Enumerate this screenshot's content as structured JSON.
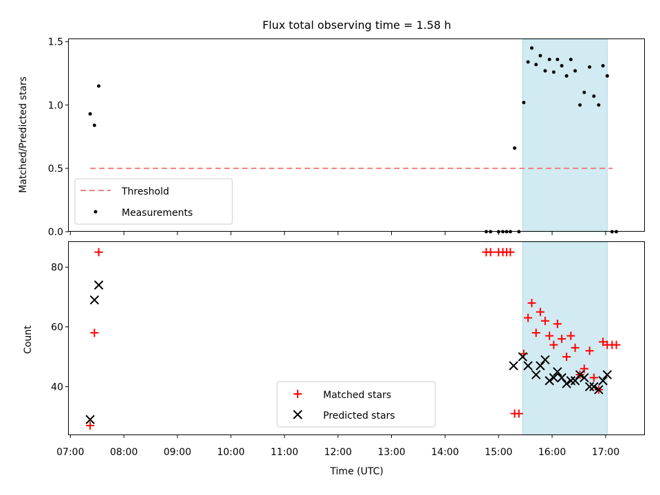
{
  "title": "Flux total observing time = 1.58 h",
  "colors": {
    "threshold": "#f08080",
    "measurement": "#000000",
    "matched": "#ff0000",
    "predicted": "#000000",
    "shade": "#add8e6"
  },
  "chart_data": [
    {
      "type": "scatter",
      "name": "ratio",
      "ylabel": "Matched/Predicted stars",
      "ylim": [
        0,
        1.52
      ],
      "yticks": [
        0.0,
        0.5,
        1.0,
        1.5
      ],
      "ytick_labels": [
        "0.0",
        "0.5",
        "1.0",
        "1.5"
      ],
      "xlim": [
        6.97,
        17.72
      ],
      "shaded_span": [
        15.45,
        17.03
      ],
      "threshold": {
        "label": "Threshold",
        "value": 0.5,
        "x_range": [
          7.37,
          17.13
        ]
      },
      "legend": {
        "position": "lower-left",
        "entries": [
          "Threshold",
          "Measurements"
        ]
      },
      "series": [
        {
          "name": "Measurements",
          "marker": "dot",
          "x": [
            7.37,
            7.45,
            7.53,
            14.77,
            14.85,
            15.0,
            15.08,
            15.15,
            15.22,
            15.3,
            15.38,
            15.47,
            15.55,
            15.62,
            15.7,
            15.78,
            15.87,
            15.95,
            16.03,
            16.1,
            16.18,
            16.27,
            16.35,
            16.43,
            16.52,
            16.6,
            16.7,
            16.78,
            16.87,
            16.95,
            17.03,
            17.12,
            17.2
          ],
          "y": [
            0.93,
            0.84,
            1.15,
            0.0,
            0.0,
            0.0,
            0.0,
            0.0,
            0.0,
            0.66,
            0.0,
            1.02,
            1.34,
            1.45,
            1.32,
            1.39,
            1.27,
            1.36,
            1.26,
            1.36,
            1.31,
            1.23,
            1.36,
            1.27,
            1.0,
            1.1,
            1.3,
            1.07,
            1.0,
            1.31,
            1.23,
            0.0,
            0.0
          ]
        }
      ]
    },
    {
      "type": "scatter",
      "name": "counts",
      "ylabel": "Count",
      "xlabel": "Time (UTC)",
      "ylim": [
        24,
        88.4
      ],
      "yticks": [
        40,
        60,
        80
      ],
      "ytick_labels": [
        "40",
        "60",
        "80"
      ],
      "xlim": [
        6.97,
        17.72
      ],
      "xticks": [
        7,
        8,
        9,
        10,
        11,
        12,
        13,
        14,
        15,
        16,
        17
      ],
      "xtick_labels": [
        "07:00",
        "08:00",
        "09:00",
        "10:00",
        "11:00",
        "12:00",
        "13:00",
        "14:00",
        "15:00",
        "16:00",
        "17:00"
      ],
      "shaded_span": [
        15.45,
        17.03
      ],
      "legend": {
        "position": "lower-center",
        "entries": [
          "Matched stars",
          "Predicted stars"
        ]
      },
      "series": [
        {
          "name": "Matched stars",
          "marker": "plus",
          "x": [
            7.37,
            7.45,
            7.53,
            14.77,
            14.85,
            15.0,
            15.08,
            15.15,
            15.22,
            15.3,
            15.38,
            15.47,
            15.55,
            15.62,
            15.7,
            15.78,
            15.87,
            15.95,
            16.03,
            16.1,
            16.18,
            16.27,
            16.35,
            16.43,
            16.52,
            16.6,
            16.7,
            16.78,
            16.87,
            16.95,
            17.03,
            17.12,
            17.2
          ],
          "y": [
            27,
            58,
            85,
            85,
            85,
            85,
            85,
            85,
            85,
            31,
            31,
            51,
            63,
            68,
            58,
            65,
            62,
            57,
            54,
            61,
            56,
            50,
            57,
            53,
            44,
            46,
            52,
            43,
            39,
            55,
            54,
            54,
            54
          ]
        },
        {
          "name": "Predicted stars",
          "marker": "x",
          "x": [
            7.37,
            7.45,
            7.53,
            15.28,
            15.45,
            15.55,
            15.7,
            15.78,
            15.87,
            15.95,
            16.03,
            16.1,
            16.18,
            16.27,
            16.35,
            16.43,
            16.52,
            16.6,
            16.7,
            16.78,
            16.87,
            16.95,
            17.03
          ],
          "y": [
            29,
            69,
            74,
            47,
            50,
            47,
            44,
            47,
            49,
            42,
            43,
            45,
            43,
            41,
            42,
            42,
            44,
            43,
            40,
            40,
            39,
            42,
            44
          ]
        }
      ]
    }
  ]
}
